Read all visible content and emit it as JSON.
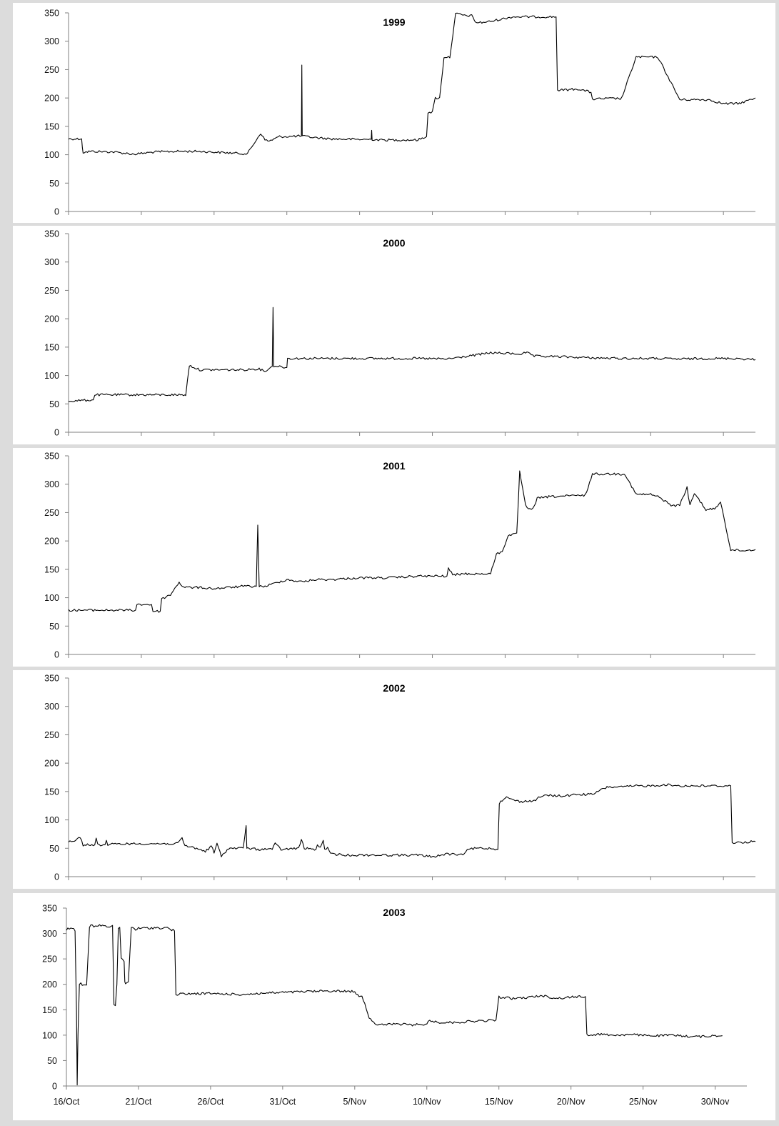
{
  "chart_data": [
    {
      "type": "line",
      "title": "1999",
      "ylim": [
        0,
        350
      ],
      "yticks": [
        "0",
        "50",
        "100",
        "150",
        "200",
        "250",
        "300",
        "350"
      ],
      "x_range": [
        "16/Oct",
        "2/Dec"
      ],
      "grid": false,
      "series": [
        {
          "x_day": [
            0,
            0.9,
            0.95,
            1.0,
            1.5,
            3.0,
            4.5,
            6.0,
            7.5,
            9.0,
            10.5,
            12.0,
            12.3,
            12.8,
            13.2,
            13.5,
            13.8,
            14.5,
            15.0,
            16.0,
            16.03,
            16.06,
            16.3,
            17.0,
            18.0,
            20.0,
            20.8,
            20.83,
            20.86,
            21.5,
            22.0,
            24.0,
            24.6,
            24.7,
            25.0,
            25.2,
            25.5,
            25.8,
            26.2,
            26.6,
            26.9,
            27.2,
            27.7,
            28.0,
            28.4,
            29.0,
            30.5,
            33.5,
            33.6,
            34.0,
            35.0,
            35.9,
            36.0,
            37.0,
            38.0,
            39.0,
            40.5,
            42.0,
            43.0,
            44.0,
            45.0,
            46.0,
            47.0,
            47.2
          ],
          "y": [
            128,
            128,
            112,
            104,
            106,
            105,
            101,
            105,
            106,
            106,
            104,
            102,
            102,
            122,
            138,
            126,
            124,
            132,
            132,
            133,
            258,
            133,
            132,
            130,
            128,
            127,
            127,
            143,
            127,
            126,
            126,
            126,
            132,
            175,
            175,
            200,
            200,
            272,
            272,
            348,
            348,
            345,
            345,
            333,
            333,
            335,
            343,
            343,
            214,
            214,
            216,
            210,
            198,
            199,
            199,
            272,
            272,
            197,
            197,
            197,
            190,
            190,
            198,
            200
          ]
        }
      ]
    },
    {
      "type": "line",
      "title": "2000",
      "ylim": [
        0,
        350
      ],
      "yticks": [
        "0",
        "50",
        "100",
        "150",
        "200",
        "250",
        "300",
        "350"
      ],
      "x_range": [
        "16/Oct",
        "2/Dec"
      ],
      "grid": false,
      "series": [
        {
          "x_day": [
            0,
            1.7,
            1.8,
            3.0,
            5.0,
            8.0,
            8.05,
            8.3,
            9.0,
            10.0,
            12.0,
            13.0,
            13.5,
            13.8,
            14.0,
            14.05,
            14.1,
            14.5,
            15.0,
            15.05,
            16.0,
            18.0,
            20.0,
            22.0,
            24.0,
            26.0,
            28.0,
            29.0,
            31.0,
            31.5,
            32.0,
            34.0,
            36.0,
            38.0,
            40.0,
            42.0,
            44.0,
            46.0,
            47.2
          ],
          "y": [
            55,
            57,
            66,
            66,
            66,
            66,
            65,
            118,
            110,
            110,
            110,
            112,
            108,
            112,
            116,
            220,
            117,
            116,
            114,
            130,
            130,
            130,
            130,
            130,
            130,
            129,
            136,
            140,
            138,
            140,
            134,
            133,
            131,
            130,
            130,
            129,
            130,
            130,
            128
          ]
        }
      ]
    },
    {
      "type": "line",
      "title": "2001",
      "ylim": [
        0,
        350
      ],
      "yticks": [
        "0",
        "50",
        "100",
        "150",
        "200",
        "250",
        "300",
        "350"
      ],
      "x_range": [
        "16/Oct",
        "2/Dec"
      ],
      "grid": false,
      "series": [
        {
          "x_day": [
            0,
            2.0,
            4.0,
            4.6,
            4.7,
            5.7,
            5.8,
            6.3,
            6.4,
            7.0,
            7.4,
            7.6,
            7.8,
            8.2,
            9.0,
            10.0,
            11.0,
            11.9,
            12.9,
            13.0,
            13.1,
            13.5,
            14.5,
            15.0,
            16.0,
            17.0,
            18.0,
            20.0,
            22.0,
            24.0,
            26.0,
            26.1,
            26.4,
            27.0,
            29.0,
            29.4,
            29.8,
            30.2,
            30.8,
            31.0,
            31.4,
            31.7,
            32.0,
            32.2,
            33.0,
            35.0,
            35.5,
            36.0,
            38.0,
            38.2,
            39.0,
            40.0,
            40.5,
            41.5,
            41.8,
            42.0,
            42.5,
            42.7,
            43.0,
            43.4,
            43.8,
            44.0,
            44.5,
            44.8,
            45.5,
            46.5,
            47.2
          ],
          "y": [
            78,
            78,
            78,
            78,
            88,
            88,
            76,
            76,
            98,
            105,
            120,
            128,
            120,
            118,
            118,
            116,
            118,
            120,
            120,
            228,
            120,
            120,
            128,
            132,
            128,
            132,
            132,
            135,
            135,
            138,
            138,
            152,
            140,
            142,
            142,
            178,
            180,
            210,
            212,
            322,
            262,
            256,
            260,
            275,
            278,
            280,
            280,
            318,
            318,
            319,
            282,
            282,
            278,
            262,
            262,
            264,
            294,
            262,
            284,
            270,
            255,
            255,
            258,
            270,
            184,
            183,
            185
          ]
        }
      ]
    },
    {
      "type": "line",
      "title": "2002",
      "ylim": [
        0,
        350
      ],
      "yticks": [
        "0",
        "50",
        "100",
        "150",
        "200",
        "250",
        "300",
        "350"
      ],
      "x_range": [
        "16/Oct",
        "2/Dec"
      ],
      "grid": false,
      "series": [
        {
          "x_day": [
            0,
            0.5,
            0.8,
            1.0,
            1.8,
            1.9,
            2.0,
            2.5,
            2.6,
            2.7,
            3.0,
            4.0,
            5.0,
            6.0,
            7.0,
            7.5,
            7.8,
            8.0,
            8.5,
            9.0,
            9.4,
            9.6,
            9.8,
            10.0,
            10.2,
            10.5,
            11.0,
            12.0,
            12.2,
            12.25,
            12.3,
            13.0,
            14.0,
            14.2,
            14.6,
            14.8,
            15.8,
            16.0,
            16.2,
            17.0,
            17.1,
            17.3,
            17.5,
            17.6,
            17.8,
            18.0,
            19.0,
            20.0,
            22.0,
            24.0,
            25.0,
            26.0,
            27.0,
            27.5,
            28.0,
            29.0,
            29.5,
            29.6,
            30.0,
            31.0,
            32.0,
            32.5,
            33.0,
            34.0,
            35.0,
            36.0,
            37.0,
            38.0,
            39.0,
            40.0,
            41.0,
            42.0,
            45.5,
            45.6,
            46.0,
            47.2
          ],
          "y": [
            62,
            64,
            70,
            56,
            56,
            68,
            56,
            56,
            64,
            56,
            57,
            58,
            58,
            58,
            58,
            58,
            68,
            54,
            52,
            48,
            45,
            48,
            55,
            42,
            58,
            36,
            50,
            50,
            90,
            50,
            50,
            48,
            49,
            58,
            48,
            48,
            50,
            65,
            50,
            48,
            56,
            50,
            64,
            50,
            50,
            40,
            38,
            38,
            38,
            38,
            35,
            40,
            38,
            48,
            50,
            50,
            48,
            130,
            140,
            132,
            134,
            142,
            143,
            142,
            145,
            145,
            158,
            158,
            160,
            160,
            162,
            160,
            160,
            60,
            60,
            62
          ]
        }
      ]
    },
    {
      "type": "line",
      "title": "2003",
      "ylim": [
        0,
        350
      ],
      "yticks": [
        "0",
        "50",
        "100",
        "150",
        "200",
        "250",
        "300",
        "350"
      ],
      "x_labels": [
        "16/Oct",
        "21/Oct",
        "26/Oct",
        "31/Oct",
        "5/Nov",
        "10/Nov",
        "15/Nov",
        "20/Nov",
        "25/Nov",
        "30/Nov"
      ],
      "x_range": [
        "16/Oct",
        "2/Dec"
      ],
      "grid": false,
      "series": [
        {
          "x_day": [
            0,
            0.2,
            0.5,
            0.6,
            0.7,
            0.75,
            0.8,
            0.9,
            1.0,
            1.1,
            1.4,
            1.6,
            1.7,
            2.0,
            2.5,
            3.0,
            3.2,
            3.3,
            3.4,
            3.5,
            3.6,
            3.7,
            3.8,
            4.0,
            4.05,
            4.1,
            4.3,
            4.5,
            4.7,
            4.8,
            5.0,
            6.0,
            7.0,
            7.5,
            7.6,
            8.0,
            10.0,
            12.0,
            14.0,
            16.0,
            18.0,
            20.0,
            20.2,
            20.5,
            21.0,
            21.2,
            21.5,
            23.0,
            24.0,
            25.0,
            25.1,
            26.0,
            27.0,
            27.5,
            28.0,
            28.5,
            29.0,
            29.8,
            30.0,
            31.0,
            32.0,
            33.0,
            34.0,
            35.0,
            36.0,
            36.1,
            37.0,
            38.0,
            39.0,
            40.0,
            41.0,
            42.0,
            43.0,
            44.0,
            45.0,
            45.5
          ],
          "y": [
            308,
            310,
            310,
            305,
            150,
            2,
            100,
            200,
            203,
            200,
            200,
            312,
            315,
            314,
            316,
            312,
            316,
            160,
            158,
            200,
            310,
            312,
            250,
            245,
            205,
            202,
            205,
            312,
            310,
            308,
            310,
            311,
            311,
            305,
            180,
            181,
            182,
            180,
            183,
            185,
            187,
            186,
            178,
            178,
            135,
            130,
            120,
            122,
            120,
            122,
            128,
            125,
            125,
            126,
            127,
            128,
            128,
            130,
            175,
            172,
            174,
            178,
            172,
            175,
            176,
            100,
            102,
            100,
            101,
            100,
            99,
            100,
            98,
            97,
            99,
            99
          ]
        }
      ]
    }
  ]
}
